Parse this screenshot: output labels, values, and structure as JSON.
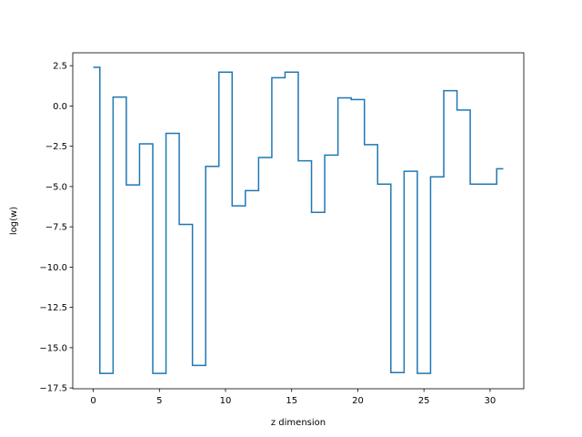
{
  "chart_data": {
    "type": "line",
    "drawstyle": "steps-mid",
    "xlabel": "z dimension",
    "ylabel": "log(w)",
    "xlim": [
      -1.55,
      32.55
    ],
    "ylim": [
      -17.55,
      3.3
    ],
    "x_ticks": [
      0,
      5,
      10,
      15,
      20,
      25,
      30
    ],
    "y_ticks": [
      2.5,
      0.0,
      -2.5,
      -5.0,
      -7.5,
      -10.0,
      -12.5,
      -15.0,
      -17.5
    ],
    "x_tick_labels": [
      "0",
      "5",
      "10",
      "15",
      "20",
      "25",
      "30"
    ],
    "y_tick_labels": [
      "2.5",
      "0.0",
      "−2.5",
      "−5.0",
      "−7.5",
      "−10.0",
      "−12.5",
      "−15.0",
      "−17.5"
    ],
    "grid": false,
    "line_color": "#1f77b4",
    "series": [
      {
        "x": [
          0,
          1,
          2,
          3,
          4,
          5,
          6,
          7,
          8,
          9,
          10,
          11,
          12,
          13,
          14,
          15,
          16,
          17,
          18,
          19,
          20,
          21,
          22,
          23,
          24,
          25,
          26,
          27,
          28,
          29,
          30,
          31
        ],
        "values": [
          2.4,
          -16.6,
          0.55,
          -4.9,
          -2.35,
          -16.6,
          -1.7,
          -7.35,
          -16.1,
          -3.75,
          2.1,
          -6.2,
          -5.25,
          -3.2,
          1.75,
          2.1,
          -3.4,
          -6.6,
          -3.05,
          0.5,
          0.4,
          -2.4,
          -4.85,
          -16.55,
          -4.05,
          -16.6,
          -4.4,
          0.95,
          -0.25,
          -4.85,
          -4.85,
          -3.9
        ]
      }
    ]
  }
}
